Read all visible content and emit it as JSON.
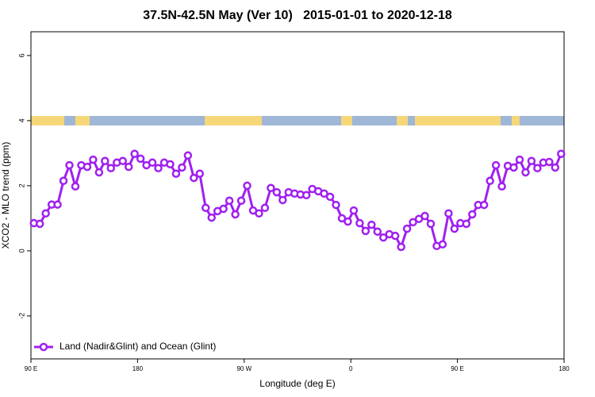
{
  "chart_data": {
    "type": "line",
    "title": "37.5N-42.5N May (Ver 10)   2015-01-01 to 2020-12-18",
    "xlabel": "Longitude (deg E)",
    "ylabel": "XCO2 - MLO trend (ppm)",
    "x": [
      92.5,
      97.5,
      102.5,
      107.5,
      112.5,
      117.5,
      122.5,
      127.5,
      132.5,
      137.5,
      142.5,
      147.5,
      152.5,
      157.5,
      162.5,
      167.5,
      172.5,
      177.5,
      182.5,
      187.5,
      192.5,
      197.5,
      202.5,
      207.5,
      212.5,
      217.5,
      222.5,
      227.5,
      232.5,
      237.5,
      242.5,
      247.5,
      252.5,
      257.5,
      262.5,
      267.5,
      272.5,
      277.5,
      282.5,
      287.5,
      292.5,
      297.5,
      302.5,
      307.5,
      312.5,
      317.5,
      322.5,
      327.5,
      332.5,
      337.5,
      342.5,
      347.5,
      352.5,
      357.5,
      362.5,
      367.5,
      372.5,
      377.5,
      382.5,
      387.5,
      392.5,
      397.5,
      402.5,
      407.5,
      412.5,
      417.5,
      422.5,
      427.5,
      432.5,
      437.5,
      442.5,
      447.5,
      452.5,
      457.5,
      462.5,
      467.5,
      472.5,
      477.5,
      482.5,
      487.5,
      492.5,
      497.5,
      502.5,
      507.5,
      512.5,
      517.5,
      522.5,
      527.5,
      532.5,
      537.5
    ],
    "series": [
      {
        "name": "Land (Nadir&Glint) and Ocean (Glint)",
        "color": "#a020f0",
        "values": [
          0.85,
          0.83,
          1.15,
          1.42,
          1.42,
          2.15,
          2.63,
          1.98,
          2.63,
          2.58,
          2.8,
          2.41,
          2.76,
          2.54,
          2.71,
          2.76,
          2.58,
          2.98,
          2.83,
          2.63,
          2.71,
          2.54,
          2.71,
          2.66,
          2.37,
          2.56,
          2.93,
          2.24,
          2.37,
          1.32,
          1.02,
          1.22,
          1.29,
          1.54,
          1.12,
          1.54,
          2.0,
          1.24,
          1.15,
          1.32,
          1.93,
          1.8,
          1.56,
          1.8,
          1.76,
          1.73,
          1.71,
          1.9,
          1.83,
          1.76,
          1.66,
          1.41,
          1.0,
          0.9,
          1.24,
          0.85,
          0.61,
          0.8,
          0.59,
          0.41,
          0.51,
          0.46,
          0.12,
          0.68,
          0.88,
          0.98,
          1.07,
          0.83,
          0.15,
          0.2,
          1.15,
          0.68,
          0.85,
          0.83,
          1.12,
          1.41,
          1.41,
          2.15,
          2.63,
          1.98,
          2.61,
          2.56,
          2.8,
          2.41,
          2.76,
          2.54,
          2.71,
          2.73,
          2.56,
          2.98
        ]
      }
    ],
    "xlim": [
      90,
      540
    ],
    "xticks": [
      {
        "value": 90,
        "label": "90 E"
      },
      180,
      {
        "value": 270,
        "label": "90 W"
      },
      {
        "value": 360,
        "label": "0"
      },
      {
        "value": 450,
        "label": "90 E"
      },
      {
        "value": 540,
        "label": "180"
      }
    ],
    "ylim": [
      -3.32,
      6.73
    ],
    "yticks": [
      -2,
      0,
      2,
      4,
      6
    ],
    "grid": false,
    "legend": "lower left"
  }
}
